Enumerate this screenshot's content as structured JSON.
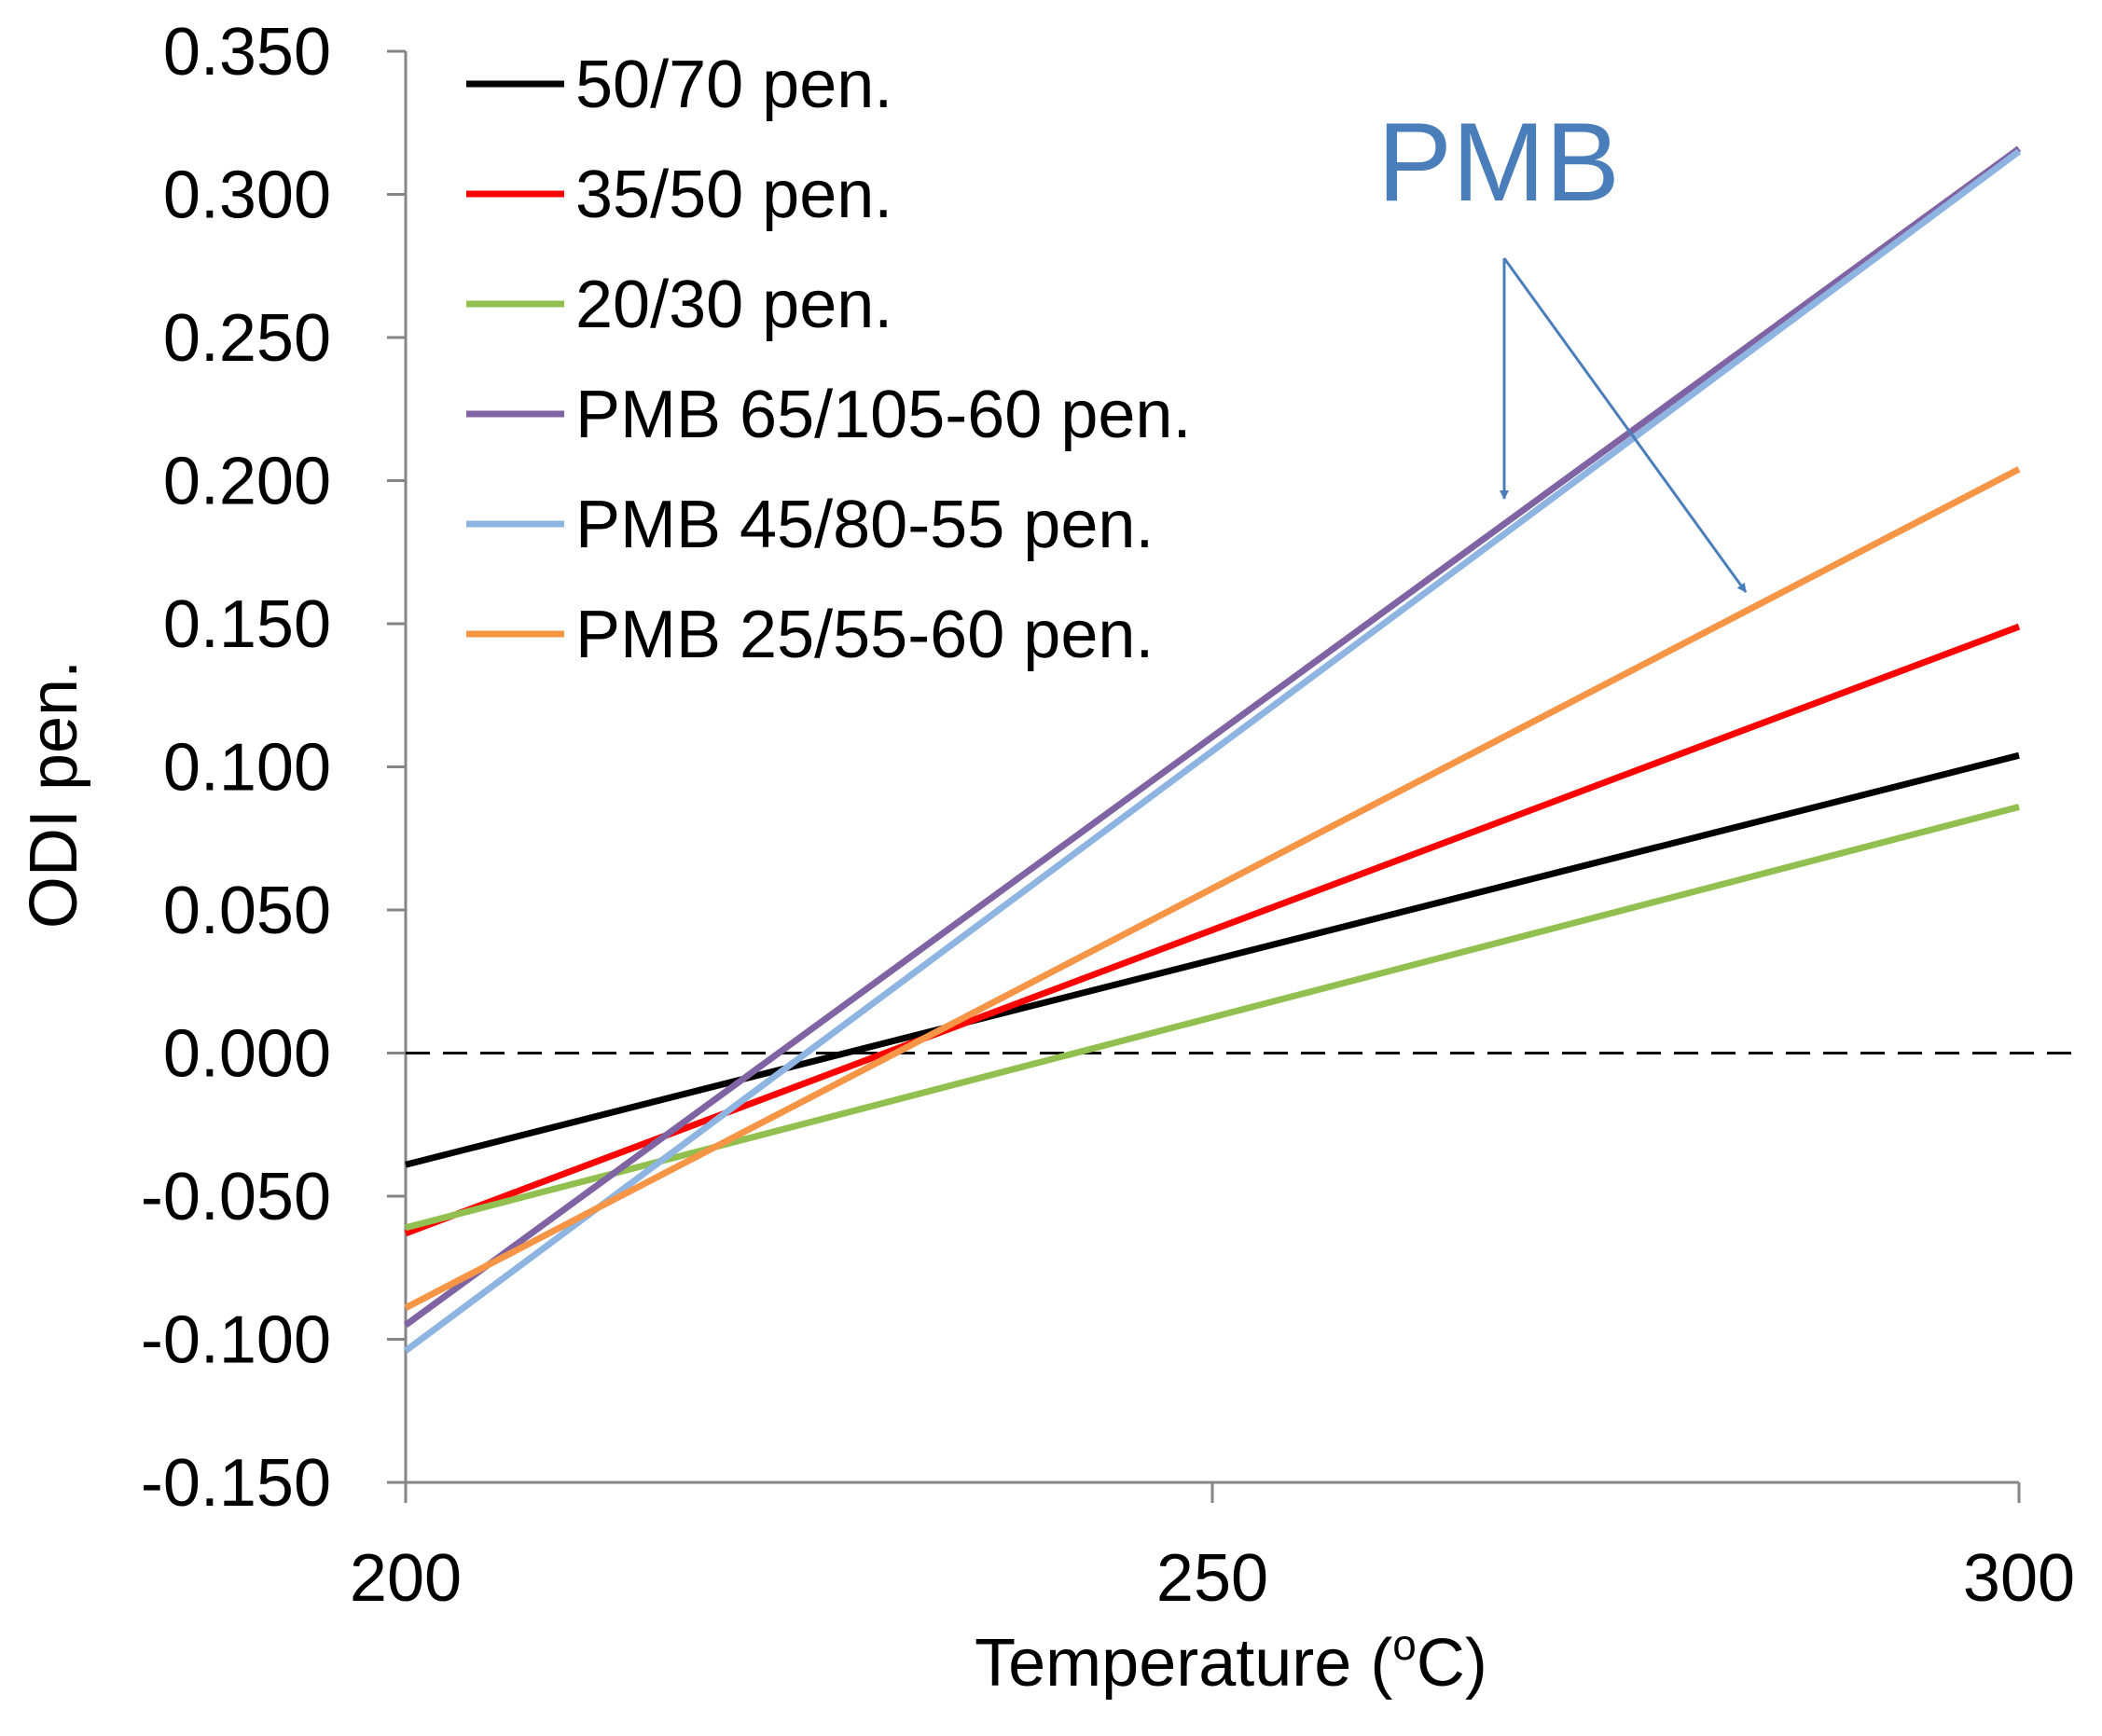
{
  "chart_data": {
    "type": "line",
    "title": "",
    "xlabel": "Temperature (",
    "xlabel_sup": "o",
    "xlabel_unit": "C)",
    "ylabel": "ODI pen.",
    "xlim": [
      200,
      300
    ],
    "ylim": [
      -0.15,
      0.35
    ],
    "x_ticks": [
      200,
      250,
      300
    ],
    "x_tick_labels": [
      "200",
      "250",
      "300"
    ],
    "y_ticks": [
      -0.15,
      -0.1,
      -0.05,
      0,
      0.05,
      0.1,
      0.15,
      0.2,
      0.25,
      0.3,
      0.35
    ],
    "y_tick_labels": [
      "-0.150",
      "-0.100",
      "-0.050",
      "0.000",
      "0.050",
      "0.100",
      "0.150",
      "0.200",
      "0.250",
      "0.300",
      "0.350"
    ],
    "reference_line": {
      "y": 0,
      "style": "dashed"
    },
    "legend_position": "top-left",
    "series": [
      {
        "name": "50/70 pen.",
        "color": "#000000",
        "x": [
          200,
          300
        ],
        "y": [
          -0.039,
          0.104
        ]
      },
      {
        "name": "35/50 pen.",
        "color": "#ff0000",
        "x": [
          200,
          300
        ],
        "y": [
          -0.063,
          0.149
        ]
      },
      {
        "name": "20/30 pen.",
        "color": "#92c050",
        "x": [
          200,
          300
        ],
        "y": [
          -0.061,
          0.086
        ]
      },
      {
        "name": "PMB 65/105-60 pen.",
        "color": "#7f63a2",
        "x": [
          200,
          300
        ],
        "y": [
          -0.095,
          0.316
        ]
      },
      {
        "name": "PMB 45/80-55 pen.",
        "color": "#8eb4e2",
        "x": [
          200,
          300
        ],
        "y": [
          -0.104,
          0.315
        ]
      },
      {
        "name": "PMB 25/55-60 pen.",
        "color": "#f79546",
        "x": [
          200,
          300
        ],
        "y": [
          -0.089,
          0.204
        ]
      }
    ],
    "annotations": [
      {
        "text": "PMB",
        "color": "#4a7ebb",
        "arrow_targets": [
          "PMB 65/105-60 pen.",
          "PMB 25/55-60 pen."
        ]
      }
    ]
  }
}
